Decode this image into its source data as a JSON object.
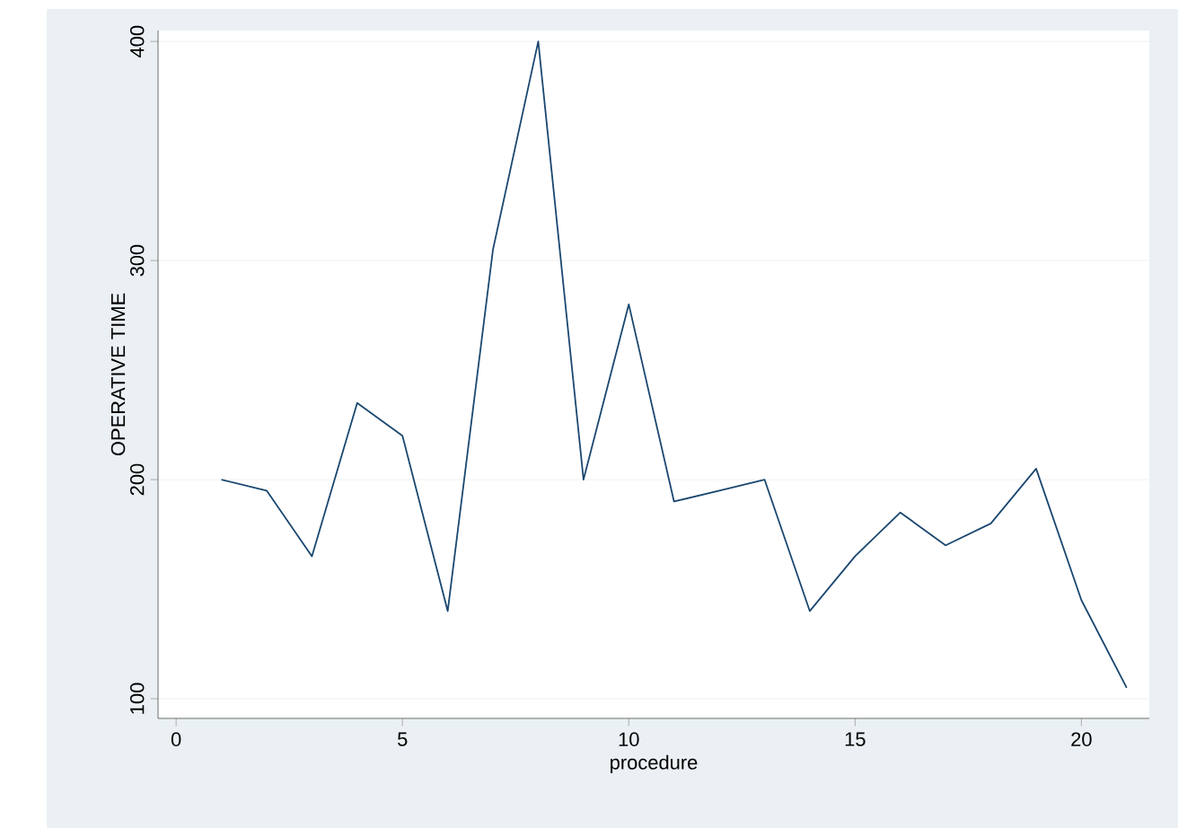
{
  "chart_data": {
    "type": "line",
    "xlabel": "procedure",
    "ylabel": "OPERATIVE TIME",
    "x": [
      1,
      2,
      3,
      4,
      5,
      6,
      7,
      8,
      9,
      10,
      11,
      12,
      13,
      14,
      15,
      16,
      17,
      18,
      19,
      20,
      21
    ],
    "series": [
      {
        "color": "#1a476f",
        "values": [
          200,
          195,
          165,
          235,
          220,
          140,
          305,
          400,
          200,
          280,
          190,
          195,
          200,
          140,
          165,
          185,
          170,
          180,
          205,
          145,
          105
        ]
      }
    ],
    "xlim": [
      -0.4,
      21.5
    ],
    "ylim": [
      91,
      405
    ],
    "xticks": [
      0,
      5,
      10,
      15,
      20
    ],
    "yticks": [
      100,
      200,
      300,
      400
    ],
    "grid": "y",
    "marker": "none",
    "line_style": "solid"
  }
}
